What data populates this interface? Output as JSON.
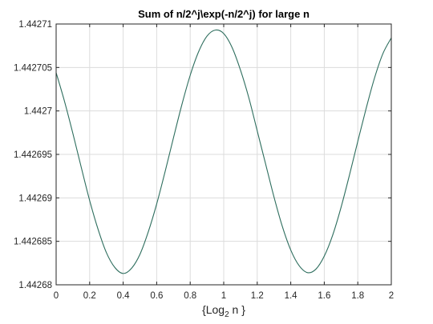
{
  "chart_data": {
    "type": "line",
    "title": "Sum of n/2^j\\exp(-n/2^j) for large n",
    "xlabel": {
      "pre": "{Log",
      "sub": "2",
      "post": " n }"
    },
    "ylabel": "",
    "xlim": [
      0,
      2
    ],
    "ylim": [
      1.44268,
      1.44271
    ],
    "grid": true,
    "xticks": [
      0,
      0.2,
      0.4,
      0.6,
      0.8,
      1,
      1.2,
      1.4,
      1.6,
      1.8,
      2
    ],
    "xtick_labels": [
      "0",
      "0.2",
      "0.4",
      "0.6",
      "0.8",
      "1",
      "1.2",
      "1.4",
      "1.6",
      "1.8",
      "2"
    ],
    "yticks": [
      1.44268,
      1.442685,
      1.44269,
      1.442695,
      1.4427,
      1.442705,
      1.44271
    ],
    "ytick_labels": [
      "1.44268",
      "1.442685",
      "1.44269",
      "1.442695",
      "1.4427",
      "1.442705",
      "1.44271"
    ],
    "series": [
      {
        "color": "#2e6e5e",
        "x": [
          0,
          0.05,
          0.1,
          0.15,
          0.2,
          0.25,
          0.3,
          0.35,
          0.4,
          0.45,
          0.5,
          0.55,
          0.6,
          0.65,
          0.7,
          0.75,
          0.8,
          0.85,
          0.9,
          0.95,
          1,
          1.05,
          1.1,
          1.15,
          1.2,
          1.25,
          1.3,
          1.35,
          1.4,
          1.45,
          1.5,
          1.55,
          1.6,
          1.65,
          1.7,
          1.75,
          1.8,
          1.85,
          1.9,
          1.95,
          2
        ],
        "y": [
          1.4427044,
          1.4427011,
          1.4426974,
          1.4426935,
          1.4426897,
          1.4426864,
          1.4426837,
          1.442682,
          1.4426813,
          1.4426819,
          1.4426835,
          1.4426861,
          1.4426893,
          1.442693,
          1.4426969,
          1.4427007,
          1.4427041,
          1.4427068,
          1.4427086,
          1.4427093,
          1.4427089,
          1.4427073,
          1.4427047,
          1.4427015,
          1.4426977,
          1.4426939,
          1.4426901,
          1.4426867,
          1.442684,
          1.4426822,
          1.4426814,
          1.4426818,
          1.4426833,
          1.4426857,
          1.4426889,
          1.4426926,
          1.4426965,
          1.4427003,
          1.4427038,
          1.4427066,
          1.4427084
        ]
      }
    ]
  }
}
